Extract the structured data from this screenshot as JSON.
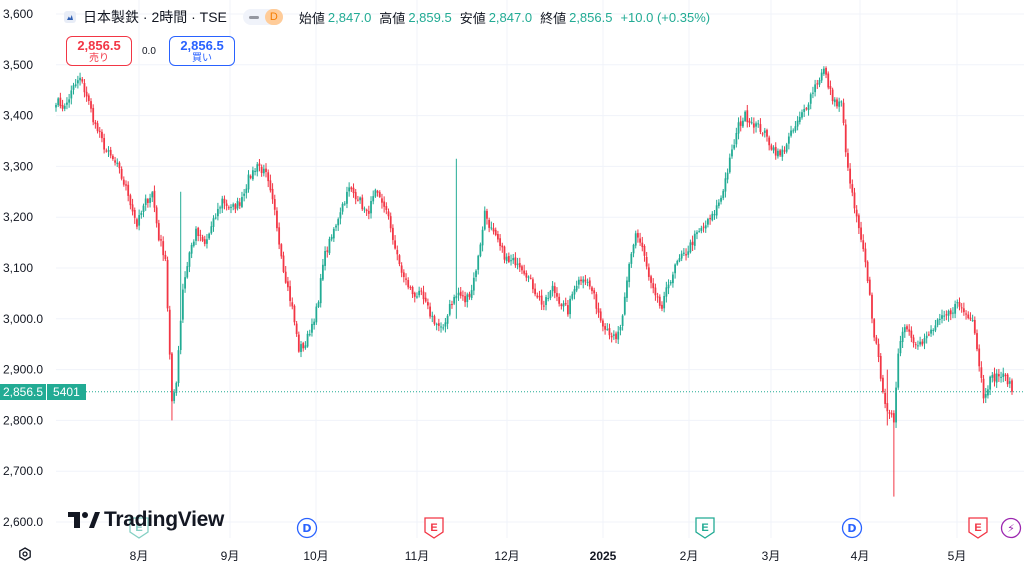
{
  "header": {
    "title": "日本製鉄 · 2時間 · TSE",
    "status_badge": "D",
    "ohlc": [
      {
        "label": "始値",
        "value": "2,847.0"
      },
      {
        "label": "高値",
        "value": "2,859.5"
      },
      {
        "label": "安値",
        "value": "2,847.0"
      },
      {
        "label": "終値",
        "value": "2,856.5"
      }
    ],
    "change": "+10.0 (+0.35%)"
  },
  "trade": {
    "sell_price": "2,856.5",
    "sell_label": "売り",
    "spread": "0.0",
    "buy_price": "2,856.5",
    "buy_label": "買い"
  },
  "price_tag": {
    "price": "2,856.5",
    "volume": "5401"
  },
  "logo_text": "TradingView",
  "colors": {
    "up": "#22ab94",
    "down": "#f23645",
    "grid": "#f0f3fa",
    "text": "#131722"
  },
  "chart_data": {
    "type": "candlestick",
    "yticks": [
      3600,
      3500,
      3400,
      3300,
      3200,
      3100,
      3000,
      2900,
      2800,
      2700,
      2600
    ],
    "ytick_labels": [
      "3,600",
      "3,500",
      "3,400",
      "3,300",
      "3,200",
      "3,100",
      "3,000.0",
      "2,900.0",
      "2,800.0",
      "2,700.0",
      "2,600.0"
    ],
    "ylim": [
      2590,
      3615
    ],
    "xticks": [
      {
        "label": "8月",
        "bold": false
      },
      {
        "label": "9月",
        "bold": false
      },
      {
        "label": "10月",
        "bold": false
      },
      {
        "label": "11月",
        "bold": false
      },
      {
        "label": "12月",
        "bold": false
      },
      {
        "label": "2025",
        "bold": true
      },
      {
        "label": "2月",
        "bold": false
      },
      {
        "label": "3月",
        "bold": false
      },
      {
        "label": "4月",
        "bold": false
      },
      {
        "label": "5月",
        "bold": false
      }
    ],
    "last_price": 2856.5,
    "events": [
      {
        "type": "E",
        "after_tick": "8月"
      },
      {
        "type": "D",
        "after_tick": "10月"
      },
      {
        "type": "E",
        "after_tick": "11月"
      },
      {
        "type": "E",
        "after_tick": "2月"
      },
      {
        "type": "D",
        "after_tick": "4月"
      },
      {
        "type": "E",
        "after_tick": "5月"
      },
      {
        "type": "⚡",
        "after_tick": "5月"
      }
    ],
    "series_path": [
      [
        0,
        3430
      ],
      [
        4,
        3415
      ],
      [
        8,
        3455
      ],
      [
        11,
        3472
      ],
      [
        14,
        3440
      ],
      [
        18,
        3380
      ],
      [
        23,
        3330
      ],
      [
        28,
        3300
      ],
      [
        33,
        3245
      ],
      [
        37,
        3185
      ],
      [
        41,
        3230
      ],
      [
        44,
        3248
      ],
      [
        47,
        3160
      ],
      [
        50,
        3120
      ],
      [
        53,
        2830
      ],
      [
        55,
        2880
      ],
      [
        58,
        3060
      ],
      [
        61,
        3130
      ],
      [
        64,
        3170
      ],
      [
        68,
        3145
      ],
      [
        72,
        3190
      ],
      [
        76,
        3235
      ],
      [
        80,
        3215
      ],
      [
        84,
        3230
      ],
      [
        88,
        3275
      ],
      [
        92,
        3305
      ],
      [
        96,
        3282
      ],
      [
        100,
        3210
      ],
      [
        104,
        3100
      ],
      [
        108,
        3020
      ],
      [
        111,
        2940
      ],
      [
        114,
        2950
      ],
      [
        117,
        2990
      ],
      [
        120,
        3030
      ],
      [
        122,
        3115
      ],
      [
        126,
        3160
      ],
      [
        130,
        3215
      ],
      [
        134,
        3255
      ],
      [
        138,
        3240
      ],
      [
        142,
        3205
      ],
      [
        146,
        3245
      ],
      [
        150,
        3225
      ],
      [
        153,
        3180
      ],
      [
        156,
        3120
      ],
      [
        159,
        3080
      ],
      [
        163,
        3050
      ],
      [
        167,
        3045
      ],
      [
        171,
        3010
      ],
      [
        174,
        2990
      ],
      [
        177,
        2975
      ],
      [
        180,
        3030
      ],
      [
        184,
        3050
      ],
      [
        187,
        3035
      ],
      [
        190,
        3060
      ],
      [
        193,
        3120
      ],
      [
        196,
        3210
      ],
      [
        199,
        3175
      ],
      [
        203,
        3140
      ],
      [
        207,
        3110
      ],
      [
        211,
        3115
      ],
      [
        215,
        3090
      ],
      [
        219,
        3055
      ],
      [
        223,
        3025
      ],
      [
        227,
        3060
      ],
      [
        231,
        3030
      ],
      [
        234,
        3015
      ],
      [
        237,
        3065
      ],
      [
        241,
        3085
      ],
      [
        245,
        3055
      ],
      [
        249,
        3000
      ],
      [
        253,
        2975
      ],
      [
        256,
        2955
      ],
      [
        259,
        3000
      ],
      [
        262,
        3105
      ],
      [
        265,
        3170
      ],
      [
        268,
        3140
      ],
      [
        271,
        3080
      ],
      [
        274,
        3040
      ],
      [
        277,
        3020
      ],
      [
        280,
        3070
      ],
      [
        284,
        3110
      ],
      [
        288,
        3130
      ],
      [
        292,
        3160
      ],
      [
        296,
        3180
      ],
      [
        300,
        3200
      ],
      [
        304,
        3240
      ],
      [
        308,
        3310
      ],
      [
        312,
        3380
      ],
      [
        315,
        3400
      ],
      [
        319,
        3385
      ],
      [
        323,
        3370
      ],
      [
        327,
        3340
      ],
      [
        331,
        3320
      ],
      [
        335,
        3355
      ],
      [
        339,
        3385
      ],
      [
        343,
        3420
      ],
      [
        347,
        3460
      ],
      [
        351,
        3490
      ],
      [
        354,
        3445
      ],
      [
        357,
        3420
      ],
      [
        359,
        3425
      ],
      [
        362,
        3290
      ],
      [
        366,
        3195
      ],
      [
        369,
        3130
      ],
      [
        371,
        3080
      ],
      [
        374,
        2970
      ],
      [
        377,
        2890
      ],
      [
        380,
        2810
      ],
      [
        383,
        2800
      ],
      [
        385,
        2940
      ],
      [
        388,
        2990
      ],
      [
        392,
        2960
      ],
      [
        396,
        2950
      ],
      [
        400,
        2975
      ],
      [
        404,
        2995
      ],
      [
        408,
        3010
      ],
      [
        412,
        3030
      ],
      [
        416,
        3010
      ],
      [
        419,
        3005
      ],
      [
        424,
        2850
      ],
      [
        427,
        2880
      ],
      [
        431,
        2890
      ],
      [
        435,
        2880
      ],
      [
        437,
        2856.5
      ]
    ],
    "spikes": [
      {
        "i": 53,
        "low": 2800,
        "high": 2885
      },
      {
        "i": 57,
        "low": 2980,
        "high": 3250
      },
      {
        "i": 183,
        "low": 3000,
        "high": 3315
      },
      {
        "i": 380,
        "low": 2790,
        "high": 2900
      },
      {
        "i": 383,
        "low": 2650,
        "high": 2780
      }
    ]
  }
}
